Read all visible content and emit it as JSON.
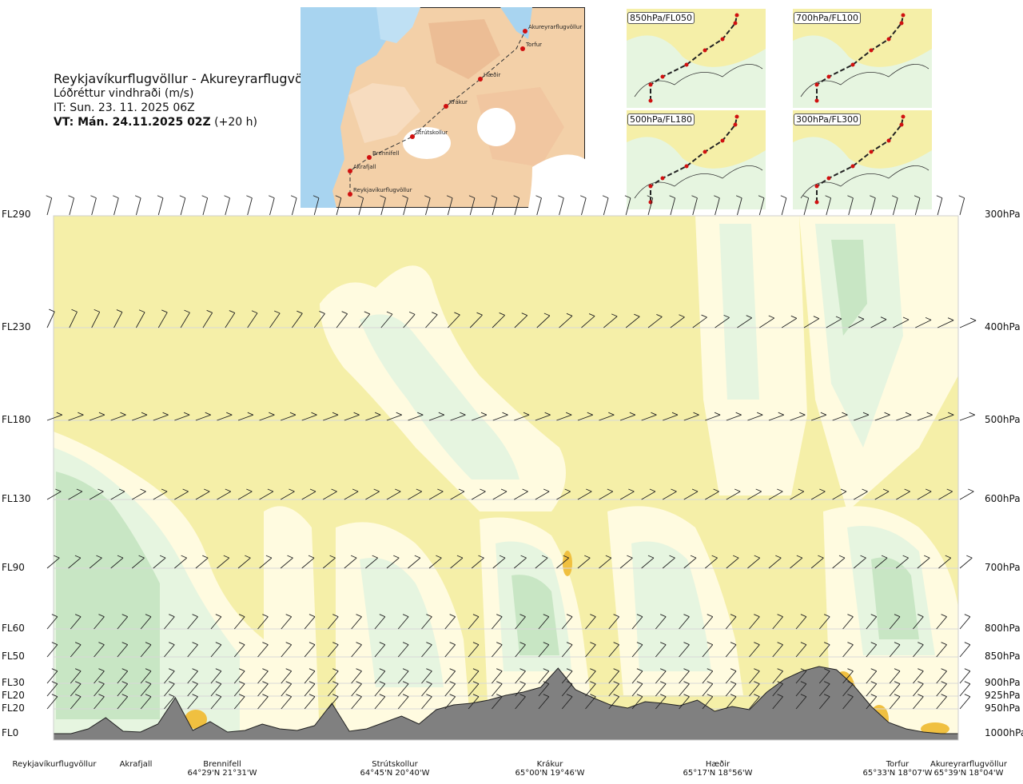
{
  "header": {
    "route": "Reykjavíkurflugvöllur - Akureyrarflugvöllur",
    "subtitle": "Lóðréttur vindhraði (m/s)",
    "issue_time": "IT: Sun. 23. 11. 2025 06Z",
    "valid_time_bold": "VT: Mán. 24.11.2025 02Z",
    "valid_time_offset": "(+20 h)"
  },
  "map": {
    "waypoints": [
      "Akureyrarflugvöllur",
      "Torfur",
      "Hæðir",
      "Krákur",
      "Strútskollur",
      "Brennifell",
      "Akrafjall",
      "Reykjavíkurflugvöllur"
    ]
  },
  "level_panels": [
    {
      "label": "850hPa/FL050"
    },
    {
      "label": "700hPa/FL100"
    },
    {
      "label": "500hPa/FL180"
    },
    {
      "label": "300hPa/FL300"
    }
  ],
  "levels_left": [
    "FL290",
    "FL230",
    "FL180",
    "FL130",
    "FL90",
    "FL60",
    "FL50",
    "FL30",
    "FL20",
    "FL20",
    "FL0"
  ],
  "levels_right": [
    "300hPa",
    "400hPa",
    "500hPa",
    "600hPa",
    "700hPa",
    "800hPa",
    "850hPa",
    "900hPa",
    "925hPa",
    "950hPa",
    "1000hPa"
  ],
  "locations": [
    {
      "name": "Reykjavíkurflugvöllur",
      "coord": ""
    },
    {
      "name": "Akrafjall",
      "coord": ""
    },
    {
      "name": "Brennifell",
      "coord": "64°29'N 21°31'W"
    },
    {
      "name": "Strútskollur",
      "coord": "64°45'N 20°40'W"
    },
    {
      "name": "Krákur",
      "coord": "65°00'N 19°46'W"
    },
    {
      "name": "Hæðir",
      "coord": "65°17'N 18°56'W"
    },
    {
      "name": "Torfur",
      "coord": "65°33'N 18°07'W"
    },
    {
      "name": "Akureyrarflugvöllur",
      "coord": "65°39'N 18°04'W"
    }
  ],
  "colors": {
    "background_field": "#f5efa8",
    "neutral": "#fffbe0",
    "light_green": "#e6f5e0",
    "medium_green": "#c8e6c4",
    "strong_green": "#a6d3a6",
    "orange": "#f0c040",
    "terrain": "#808080",
    "water": "#a8d4f0",
    "land": "#f2c8a0",
    "route": "#d01010"
  },
  "chart_data": {
    "type": "heatmap",
    "title": "Reykjavíkurflugvöllur - Akureyrarflugvöllur",
    "variable": "Lóðréttur vindhraði (m/s)",
    "x_categories": [
      "Reykjavíkurflugvöllur",
      "Akrafjall",
      "Brennifell",
      "Strútskollur",
      "Krákur",
      "Hæðir",
      "Torfur",
      "Akureyrarflugvöllur"
    ],
    "y_levels_fl": [
      "FL0",
      "FL20",
      "FL20",
      "FL30",
      "FL50",
      "FL60",
      "FL90",
      "FL130",
      "FL180",
      "FL230",
      "FL290"
    ],
    "y_levels_hpa": [
      1000,
      950,
      925,
      900,
      850,
      800,
      700,
      600,
      500,
      400,
      300
    ],
    "terrain_profile": [
      0,
      0,
      6,
      20,
      3,
      2,
      12,
      45,
      4,
      15,
      2,
      4,
      12,
      6,
      4,
      10,
      38,
      3,
      6,
      14,
      22,
      12,
      30,
      36,
      38,
      42,
      48,
      52,
      58,
      82,
      55,
      45,
      36,
      32,
      40,
      38,
      35,
      42,
      28,
      34,
      30,
      52,
      68,
      78,
      84,
      80,
      60,
      34,
      14,
      6,
      2,
      0,
      0
    ]
  }
}
